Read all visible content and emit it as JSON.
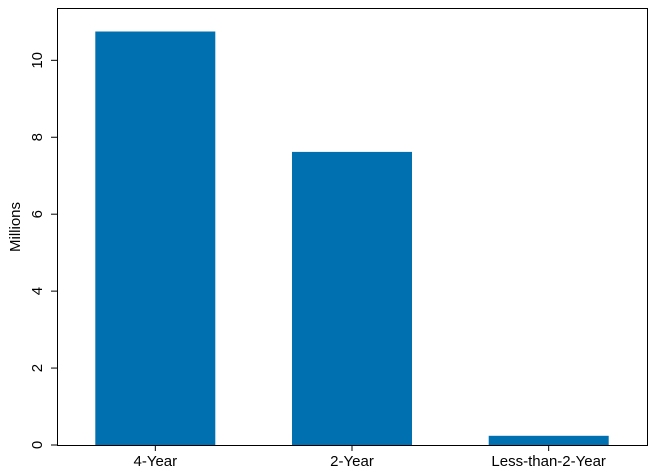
{
  "chart_data": {
    "type": "bar",
    "categories": [
      "4-Year",
      "2-Year",
      "Less-than-2-Year"
    ],
    "values": [
      10.75,
      7.62,
      0.24
    ],
    "title": "",
    "xlabel": "",
    "ylabel": "Millions",
    "ylim": [
      0,
      11.36
    ],
    "yticks": [
      0,
      2,
      4,
      6,
      8,
      10
    ],
    "ytick_labels": [
      "0",
      "2",
      "4",
      "6",
      "8",
      "10"
    ],
    "bar_color": "#0070B0",
    "grid": false,
    "legend": "none"
  }
}
